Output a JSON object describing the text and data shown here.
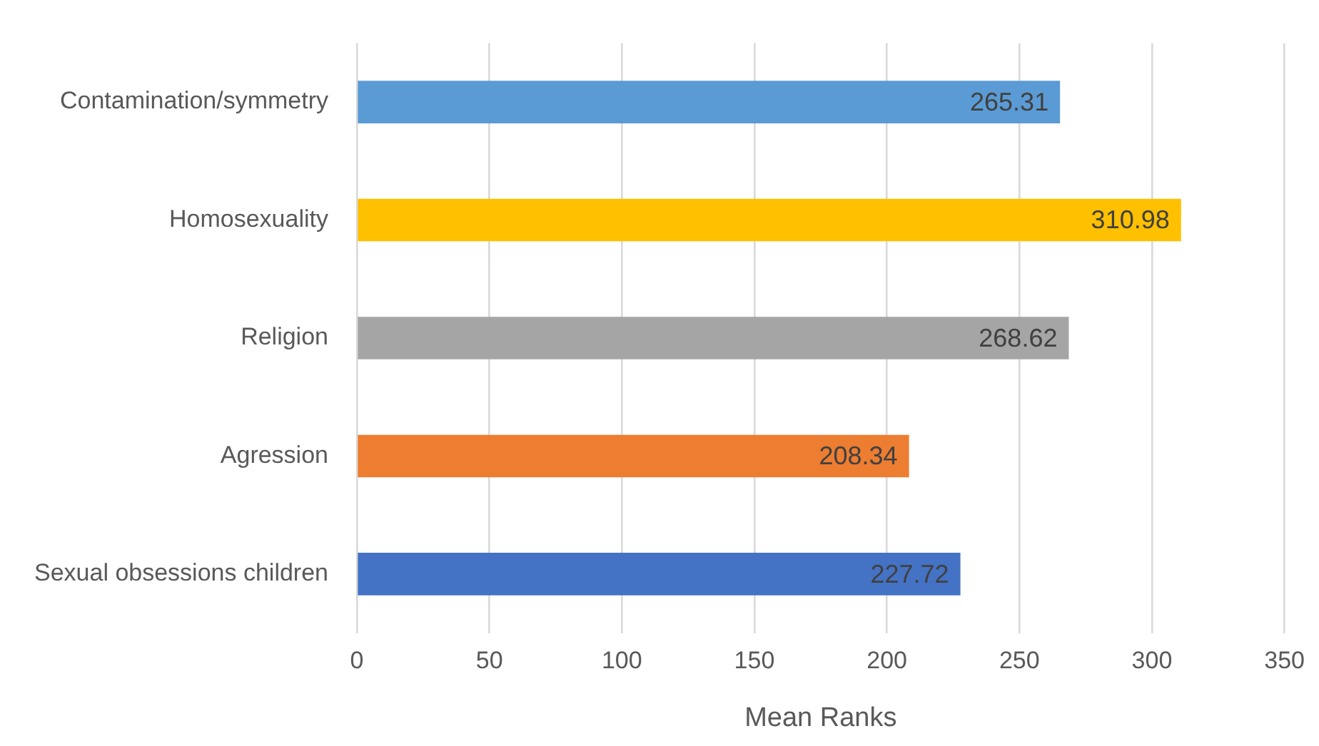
{
  "chart_data": {
    "type": "bar",
    "orientation": "horizontal",
    "xlabel": "Mean Ranks",
    "categories": [
      "Contamination/symmetry",
      "Homosexuality",
      "Religion",
      "Agression",
      "Sexual obsessions children"
    ],
    "values": [
      265.31,
      310.98,
      268.62,
      208.34,
      227.72
    ],
    "colors": [
      "#5b9bd5",
      "#ffc000",
      "#a5a5a5",
      "#ed7d31",
      "#4472c4"
    ],
    "xlim": [
      0,
      350
    ],
    "xticks": [
      0,
      50,
      100,
      150,
      200,
      250,
      300,
      350
    ],
    "grid": "x",
    "data_labels": true,
    "legend": false
  }
}
